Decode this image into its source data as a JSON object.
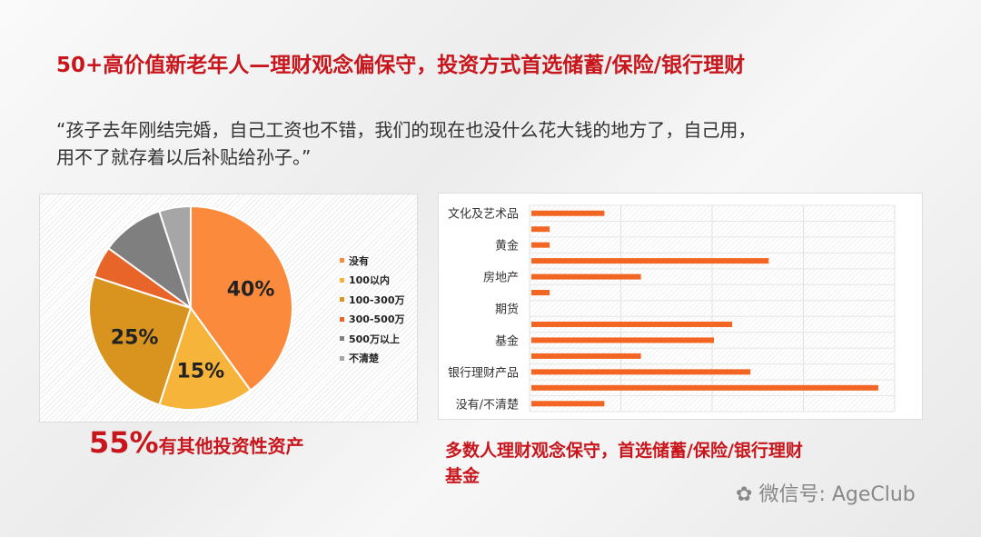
{
  "title": "50+高价值新老年人—理财观念偏保守，投资方式首选储蓄/保险/银行理财",
  "quote": {
    "line1": "“孩子去年刚结完婚，自己工资也不错，我们的现在也没什么花大钱的地方了，自己用，",
    "line2": "用不了就存着以后补贴给孙子。”"
  },
  "caption_left": {
    "percent": "55%",
    "text": "有其他投资性资产"
  },
  "caption_right": {
    "line1": "多数人理财观念保守，首选储蓄/保险/银行理财",
    "line2": "基金"
  },
  "watermark": "微信号: AgeClub",
  "chart_data": [
    {
      "type": "pie",
      "legend_position": "right",
      "labels": [
        "没有",
        "100以内",
        "100-300万",
        "300-500万",
        "500万以上",
        "不清楚"
      ],
      "values": [
        40,
        15,
        25,
        5,
        10,
        5
      ],
      "data_labels": [
        "40%",
        "15%",
        "25%",
        "",
        "",
        ""
      ],
      "colors": [
        "#fb8a3c",
        "#f6b43a",
        "#d99420",
        "#e8652a",
        "#7f7f7f",
        "#a6a6a6"
      ]
    },
    {
      "type": "bar",
      "orientation": "horizontal",
      "grid": true,
      "color": "#f26522",
      "categories": [
        "文化及艺术品",
        "",
        "黄金",
        "",
        "房地产",
        "",
        "期货",
        "",
        "基金",
        "",
        "银行理财产品",
        "",
        "没有/不清楚"
      ],
      "values": [
        4,
        1,
        1,
        13,
        6,
        1,
        0,
        11,
        10,
        6,
        12,
        19,
        4
      ],
      "xlim": [
        0,
        20
      ]
    }
  ]
}
